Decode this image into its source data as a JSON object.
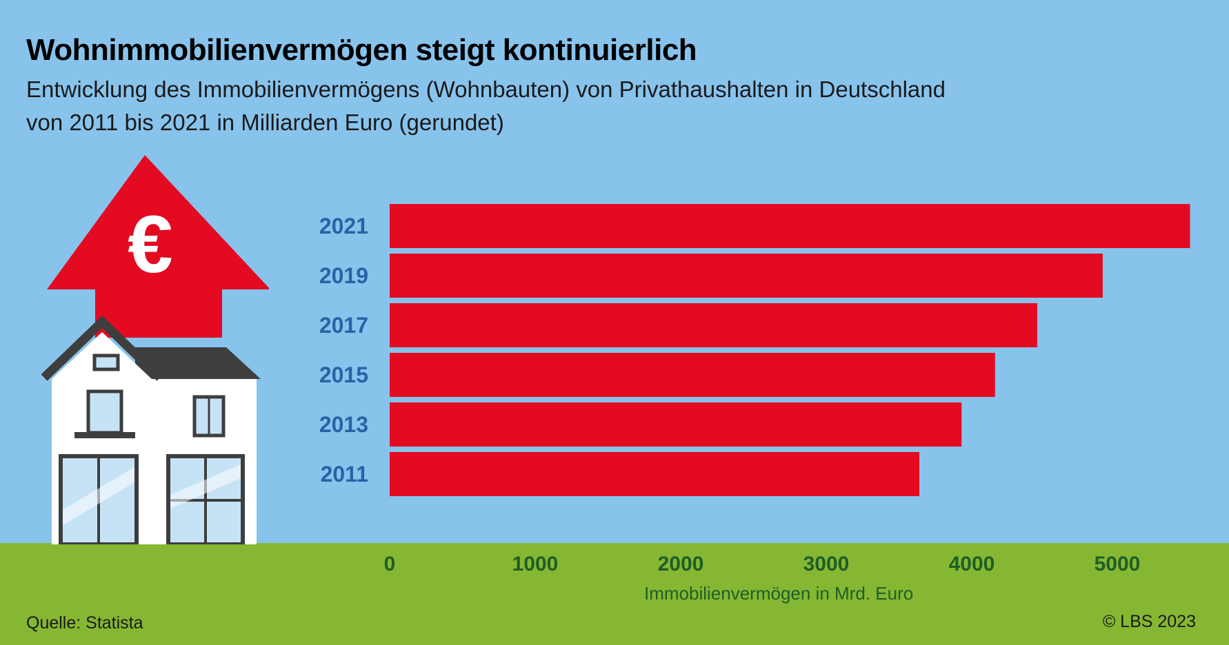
{
  "title": "Wohnimmobilienvermögen steigt kontinuierlich",
  "subtitle_line1": "Entwicklung des Immobilienvermögens (Wohnbauten) von Privathaushalten in Deutschland",
  "subtitle_line2": "von 2011 bis 2021 in Milliarden Euro (gerundet)",
  "source": "Quelle: Statista",
  "copyright": "© LBS 2023",
  "icon": {
    "symbol": "€",
    "names": [
      "house-icon",
      "red-arrow-up-icon",
      "euro-icon"
    ]
  },
  "colors": {
    "bar": "#e30a22",
    "background": "#88c3ec",
    "ground": "#85b732",
    "year_label": "#2b62a6",
    "tick_label": "#1e5e28"
  },
  "chart_data": {
    "type": "bar",
    "orientation": "horizontal",
    "categories": [
      "2021",
      "2019",
      "2017",
      "2015",
      "2013",
      "2011"
    ],
    "values": [
      5500,
      4900,
      4450,
      4160,
      3930,
      3640
    ],
    "xlabel": "Immobilienvermögen in Mrd. Euro",
    "xticks": [
      "0",
      "1000",
      "2000",
      "3000",
      "4000",
      "5000"
    ],
    "xlim": [
      0,
      5500
    ],
    "grid": false,
    "legend": "none"
  }
}
